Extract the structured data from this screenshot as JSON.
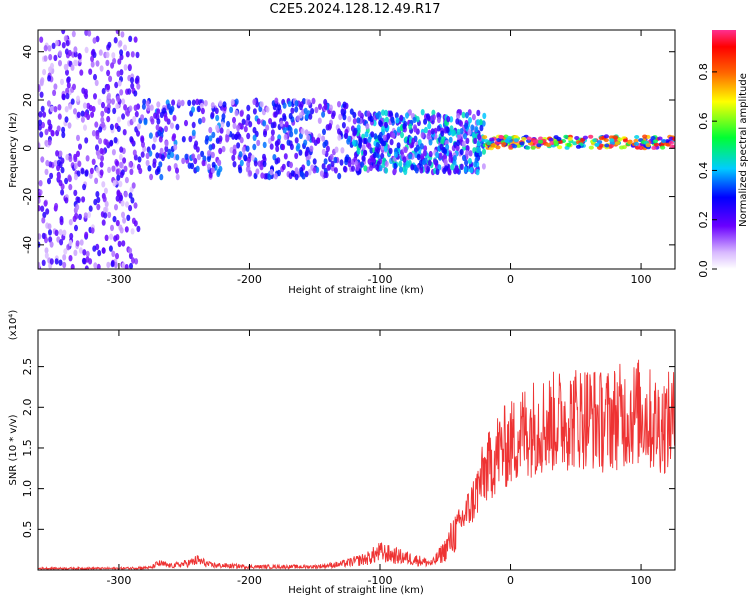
{
  "chart_data": [
    {
      "type": "heatmap",
      "title": "C2E5.2024.128.12.49.R17",
      "xlabel": "Height of straight line (km)",
      "ylabel": "Frequency (Hz)",
      "xlim": [
        -362,
        126
      ],
      "ylim": [
        -50,
        49
      ],
      "xticks": [
        "-300",
        "-200",
        "-100",
        "0",
        "100"
      ],
      "yticks": [
        "-40",
        "-20",
        "0",
        "20",
        "40"
      ],
      "colorbar": {
        "label": "Normalized spectral amplitude",
        "range": [
          0,
          0.97
        ],
        "ticks": [
          "0.0",
          "0.2",
          "0.4",
          "0.6",
          "0.8"
        ]
      },
      "bands": [
        {
          "x": [
            -362,
            -285
          ],
          "f": [
            -50,
            49
          ],
          "amp": 0.25
        },
        {
          "x": [
            -285,
            -120
          ],
          "f": [
            -12,
            20
          ],
          "amp": 0.35
        },
        {
          "x": [
            -120,
            -20
          ],
          "f": [
            -10,
            15
          ],
          "amp": 0.45
        },
        {
          "x": [
            -20,
            126
          ],
          "f": [
            0,
            5
          ],
          "amp": 0.95
        }
      ]
    },
    {
      "type": "line",
      "xlabel": "Height of straight line (km)",
      "ylabel": "SNR (10 * v/v)",
      "y_multiplier": "(x10⁴)",
      "xlim": [
        -362,
        126
      ],
      "ylim": [
        0,
        2.95
      ],
      "xticks": [
        "-300",
        "-200",
        "-100",
        "0",
        "100"
      ],
      "yticks": [
        "0.5",
        "1.0",
        "1.5",
        "2.0",
        "2.5"
      ],
      "color": "#ee3333",
      "x": [
        -362,
        -300,
        -275,
        -270,
        -260,
        -245,
        -240,
        -230,
        -200,
        -150,
        -130,
        -110,
        -100,
        -90,
        -80,
        -60,
        -50,
        -40,
        -30,
        -25,
        -20,
        -15,
        -10,
        0,
        10,
        20,
        30,
        40,
        50,
        60,
        70,
        80,
        90,
        100,
        110,
        120,
        126
      ],
      "y": [
        0.02,
        0.02,
        0.03,
        0.08,
        0.05,
        0.09,
        0.12,
        0.06,
        0.04,
        0.04,
        0.07,
        0.14,
        0.22,
        0.18,
        0.15,
        0.08,
        0.25,
        0.55,
        0.8,
        1.0,
        1.2,
        1.3,
        1.45,
        1.55,
        1.7,
        1.78,
        1.8,
        1.85,
        1.88,
        1.9,
        1.82,
        1.88,
        1.9,
        1.95,
        1.8,
        1.8,
        1.85
      ]
    }
  ]
}
